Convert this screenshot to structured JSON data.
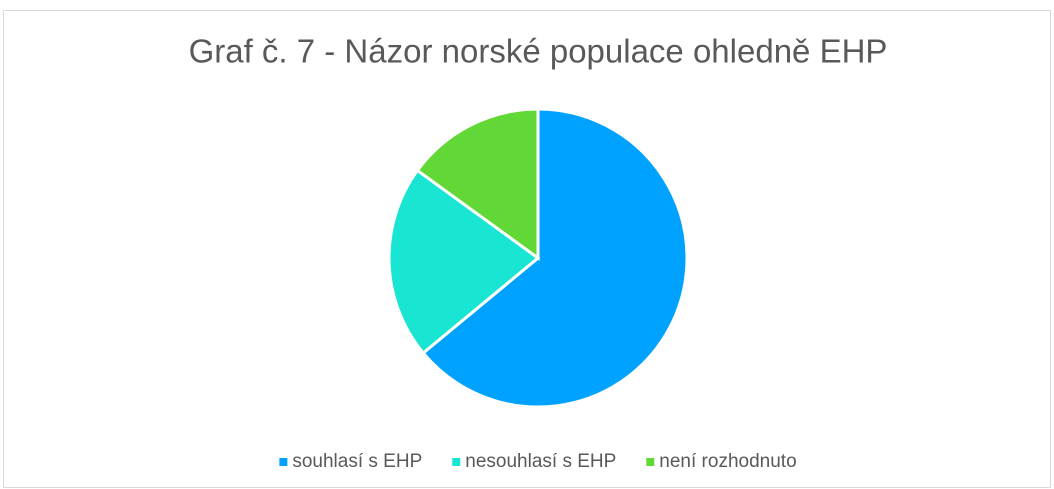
{
  "chart_data": {
    "type": "pie",
    "title": "Graf č. 7 - Názor norské populace ohledně EHP",
    "categories": [
      "souhlasí s EHP",
      "nesouhlasí s EHP",
      "není rozhodnuto"
    ],
    "values": [
      64,
      21,
      15
    ],
    "colors": [
      "#00a2ff",
      "#19e6d2",
      "#62d836"
    ],
    "legend": "bottom"
  }
}
